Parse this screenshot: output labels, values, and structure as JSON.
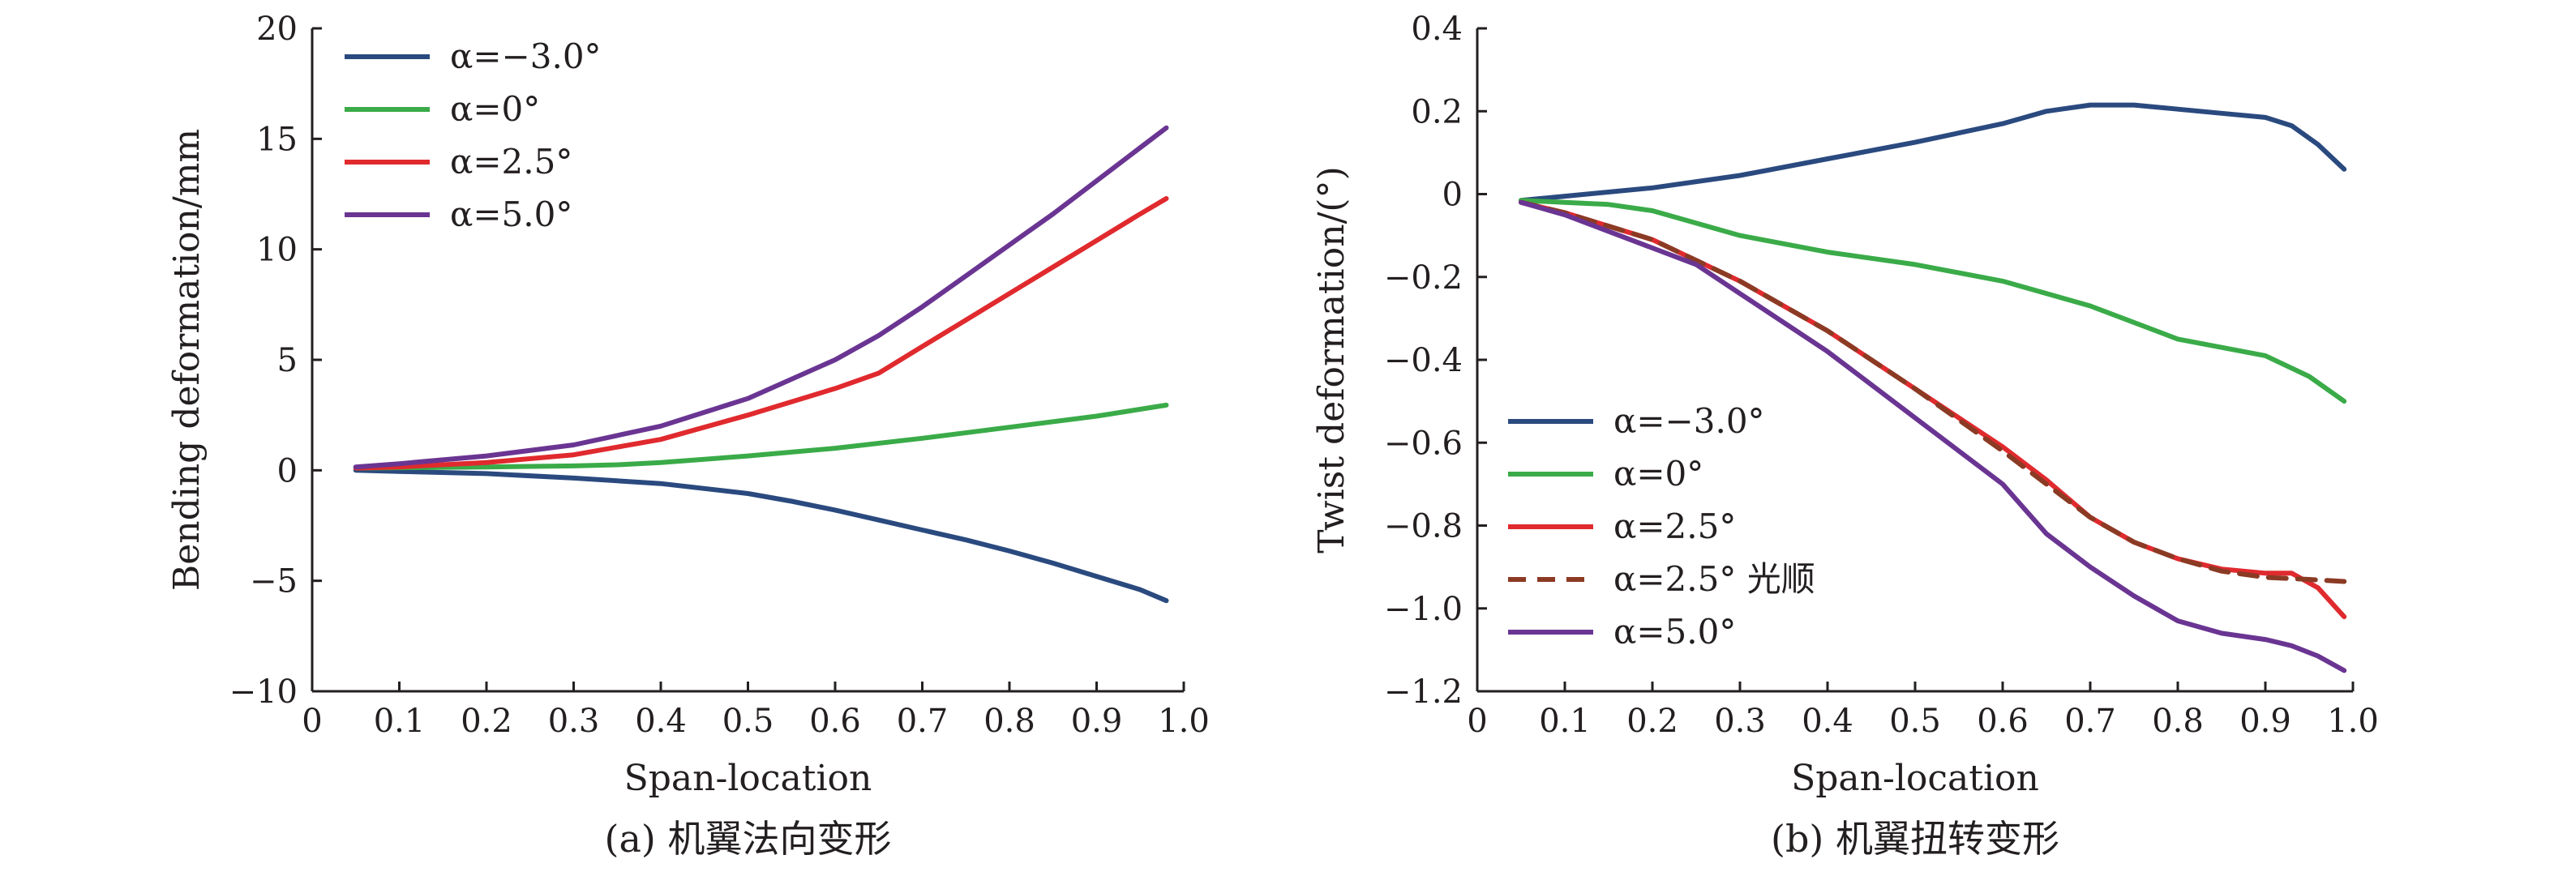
{
  "charts": [
    {
      "panel": "a",
      "type": "line",
      "caption": "(a) 机翼法向变形",
      "xlabel": "Span-location",
      "ylabel": "Bending deformation/mm",
      "xlim": [
        0,
        1.0
      ],
      "ylim": [
        -10,
        20
      ],
      "xticks": [
        0,
        0.1,
        0.2,
        0.3,
        0.4,
        0.5,
        0.6,
        0.7,
        0.8,
        0.9,
        1.0
      ],
      "xtick_labels": [
        "0",
        "0.1",
        "0.2",
        "0.3",
        "0.4",
        "0.5",
        "0.6",
        "0.7",
        "0.8",
        "0.9",
        "1.0"
      ],
      "yticks": [
        -10,
        -5,
        0,
        5,
        10,
        15,
        20
      ],
      "ytick_labels": [
        "−10",
        "−5",
        "0",
        "5",
        "10",
        "15",
        "20"
      ],
      "legend_position": "top-left",
      "series": [
        {
          "name": "α=−3.0°",
          "color": "#2a4a7f",
          "dash": "solid",
          "x": [
            0.05,
            0.1,
            0.2,
            0.3,
            0.4,
            0.5,
            0.55,
            0.6,
            0.65,
            0.7,
            0.75,
            0.8,
            0.85,
            0.9,
            0.95,
            0.98
          ],
          "y": [
            0.0,
            -0.05,
            -0.15,
            -0.35,
            -0.6,
            -1.05,
            -1.4,
            -1.8,
            -2.25,
            -2.7,
            -3.15,
            -3.65,
            -4.2,
            -4.8,
            -5.4,
            -5.9
          ]
        },
        {
          "name": "α=0°",
          "color": "#3aab48",
          "dash": "solid",
          "x": [
            0.05,
            0.1,
            0.2,
            0.3,
            0.35,
            0.4,
            0.5,
            0.6,
            0.7,
            0.8,
            0.9,
            0.98
          ],
          "y": [
            0.1,
            0.12,
            0.15,
            0.2,
            0.25,
            0.35,
            0.65,
            1.0,
            1.45,
            1.95,
            2.45,
            2.95
          ]
        },
        {
          "name": "α=2.5°",
          "color": "#e02a2e",
          "dash": "solid",
          "x": [
            0.05,
            0.1,
            0.2,
            0.3,
            0.4,
            0.5,
            0.6,
            0.65,
            0.7,
            0.75,
            0.8,
            0.85,
            0.9,
            0.95,
            0.98
          ],
          "y": [
            0.1,
            0.15,
            0.35,
            0.7,
            1.4,
            2.5,
            3.7,
            4.4,
            5.6,
            6.8,
            8.0,
            9.2,
            10.4,
            11.6,
            12.3
          ]
        },
        {
          "name": "α=5.0°",
          "color": "#6a3592",
          "dash": "solid",
          "x": [
            0.05,
            0.1,
            0.2,
            0.3,
            0.4,
            0.5,
            0.6,
            0.65,
            0.7,
            0.75,
            0.8,
            0.85,
            0.9,
            0.95,
            0.98
          ],
          "y": [
            0.15,
            0.3,
            0.65,
            1.15,
            2.0,
            3.25,
            5.0,
            6.1,
            7.4,
            8.8,
            10.2,
            11.6,
            13.1,
            14.6,
            15.5
          ]
        }
      ]
    },
    {
      "panel": "b",
      "type": "line",
      "caption": "(b) 机翼扭转变形",
      "xlabel": "Span-location",
      "ylabel": "Twist deformation/(°)",
      "xlim": [
        0,
        1.0
      ],
      "ylim": [
        -1.2,
        0.4
      ],
      "xticks": [
        0,
        0.1,
        0.2,
        0.3,
        0.4,
        0.5,
        0.6,
        0.7,
        0.8,
        0.9,
        1.0
      ],
      "xtick_labels": [
        "0",
        "0.1",
        "0.2",
        "0.3",
        "0.4",
        "0.5",
        "0.6",
        "0.7",
        "0.8",
        "0.9",
        "1.0"
      ],
      "yticks": [
        -1.2,
        -1.0,
        -0.8,
        -0.6,
        -0.4,
        -0.2,
        0,
        0.2,
        0.4
      ],
      "ytick_labels": [
        "−1.2",
        "−1.0",
        "−0.8",
        "−0.6",
        "−0.4",
        "−0.2",
        "0",
        "0.2",
        "0.4"
      ],
      "legend_position": "center-left",
      "series": [
        {
          "name": "α=−3.0°",
          "color": "#2a4a7f",
          "dash": "solid",
          "x": [
            0.05,
            0.1,
            0.2,
            0.3,
            0.4,
            0.5,
            0.6,
            0.65,
            0.7,
            0.75,
            0.8,
            0.85,
            0.9,
            0.93,
            0.96,
            0.99
          ],
          "y": [
            -0.015,
            -0.005,
            0.015,
            0.045,
            0.085,
            0.125,
            0.17,
            0.2,
            0.215,
            0.215,
            0.205,
            0.195,
            0.185,
            0.165,
            0.12,
            0.06
          ]
        },
        {
          "name": "α=0°",
          "color": "#3aab48",
          "dash": "solid",
          "x": [
            0.05,
            0.1,
            0.15,
            0.2,
            0.3,
            0.4,
            0.5,
            0.6,
            0.7,
            0.8,
            0.9,
            0.95,
            0.99
          ],
          "y": [
            -0.015,
            -0.02,
            -0.025,
            -0.04,
            -0.1,
            -0.14,
            -0.17,
            -0.21,
            -0.27,
            -0.35,
            -0.39,
            -0.44,
            -0.5
          ]
        },
        {
          "name": "α=2.5°",
          "color": "#e02a2e",
          "dash": "solid",
          "x": [
            0.05,
            0.1,
            0.2,
            0.3,
            0.4,
            0.5,
            0.6,
            0.65,
            0.7,
            0.75,
            0.8,
            0.85,
            0.9,
            0.93,
            0.96,
            0.99
          ],
          "y": [
            -0.02,
            -0.045,
            -0.11,
            -0.21,
            -0.33,
            -0.47,
            -0.61,
            -0.69,
            -0.78,
            -0.84,
            -0.88,
            -0.905,
            -0.915,
            -0.915,
            -0.95,
            -1.02
          ]
        },
        {
          "name": "α=2.5° 光顺",
          "color": "#8b3a24",
          "dash": "dashed",
          "x": [
            0.05,
            0.1,
            0.2,
            0.3,
            0.4,
            0.5,
            0.6,
            0.65,
            0.7,
            0.75,
            0.8,
            0.85,
            0.9,
            0.95,
            0.99
          ],
          "y": [
            -0.02,
            -0.045,
            -0.11,
            -0.21,
            -0.33,
            -0.47,
            -0.62,
            -0.7,
            -0.78,
            -0.84,
            -0.88,
            -0.91,
            -0.925,
            -0.93,
            -0.935
          ]
        },
        {
          "name": "α=5.0°",
          "color": "#6a3592",
          "dash": "solid",
          "x": [
            0.05,
            0.1,
            0.2,
            0.25,
            0.3,
            0.4,
            0.5,
            0.6,
            0.65,
            0.7,
            0.75,
            0.8,
            0.85,
            0.9,
            0.93,
            0.96,
            0.99
          ],
          "y": [
            -0.02,
            -0.05,
            -0.13,
            -0.17,
            -0.24,
            -0.38,
            -0.54,
            -0.7,
            -0.82,
            -0.9,
            -0.97,
            -1.03,
            -1.06,
            -1.075,
            -1.09,
            -1.115,
            -1.15
          ]
        }
      ]
    }
  ]
}
